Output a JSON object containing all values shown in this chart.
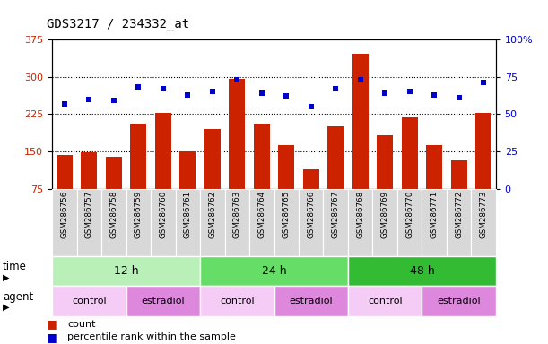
{
  "title": "GDS3217 / 234332_at",
  "samples": [
    "GSM286756",
    "GSM286757",
    "GSM286758",
    "GSM286759",
    "GSM286760",
    "GSM286761",
    "GSM286762",
    "GSM286763",
    "GSM286764",
    "GSM286765",
    "GSM286766",
    "GSM286767",
    "GSM286768",
    "GSM286769",
    "GSM286770",
    "GSM286771",
    "GSM286772",
    "GSM286773"
  ],
  "counts": [
    143,
    148,
    140,
    205,
    228,
    150,
    195,
    295,
    205,
    162,
    115,
    200,
    345,
    182,
    218,
    162,
    133,
    228
  ],
  "percentile_ranks": [
    57,
    60,
    59,
    68,
    67,
    63,
    65,
    73,
    64,
    62,
    55,
    67,
    73,
    64,
    65,
    63,
    61,
    71
  ],
  "ylim_left": [
    75,
    375
  ],
  "ylim_right": [
    0,
    100
  ],
  "yticks_left": [
    75,
    150,
    225,
    300,
    375
  ],
  "yticks_right": [
    0,
    25,
    50,
    75,
    100
  ],
  "bar_color": "#cc2200",
  "dot_color": "#0000cc",
  "plot_bg": "#ffffff",
  "time_groups": [
    {
      "label": "12 h",
      "start": 0,
      "end": 6,
      "color": "#b8f0b8"
    },
    {
      "label": "24 h",
      "start": 6,
      "end": 12,
      "color": "#66dd66"
    },
    {
      "label": "48 h",
      "start": 12,
      "end": 18,
      "color": "#33bb33"
    }
  ],
  "agent_groups": [
    {
      "label": "control",
      "start": 0,
      "end": 3,
      "color": "#f5ccf5"
    },
    {
      "label": "estradiol",
      "start": 3,
      "end": 6,
      "color": "#dd88dd"
    },
    {
      "label": "control",
      "start": 6,
      "end": 9,
      "color": "#f5ccf5"
    },
    {
      "label": "estradiol",
      "start": 9,
      "end": 12,
      "color": "#dd88dd"
    },
    {
      "label": "control",
      "start": 12,
      "end": 15,
      "color": "#f5ccf5"
    },
    {
      "label": "estradiol",
      "start": 15,
      "end": 18,
      "color": "#dd88dd"
    }
  ],
  "time_label": "time",
  "agent_label": "agent",
  "legend_count_label": "count",
  "legend_percentile_label": "percentile rank within the sample",
  "tick_label_color_left": "#cc2200",
  "tick_label_color_right": "#0000cc",
  "grid_dotted_at": [
    150,
    225,
    300
  ],
  "cell_bg": "#d8d8d8"
}
